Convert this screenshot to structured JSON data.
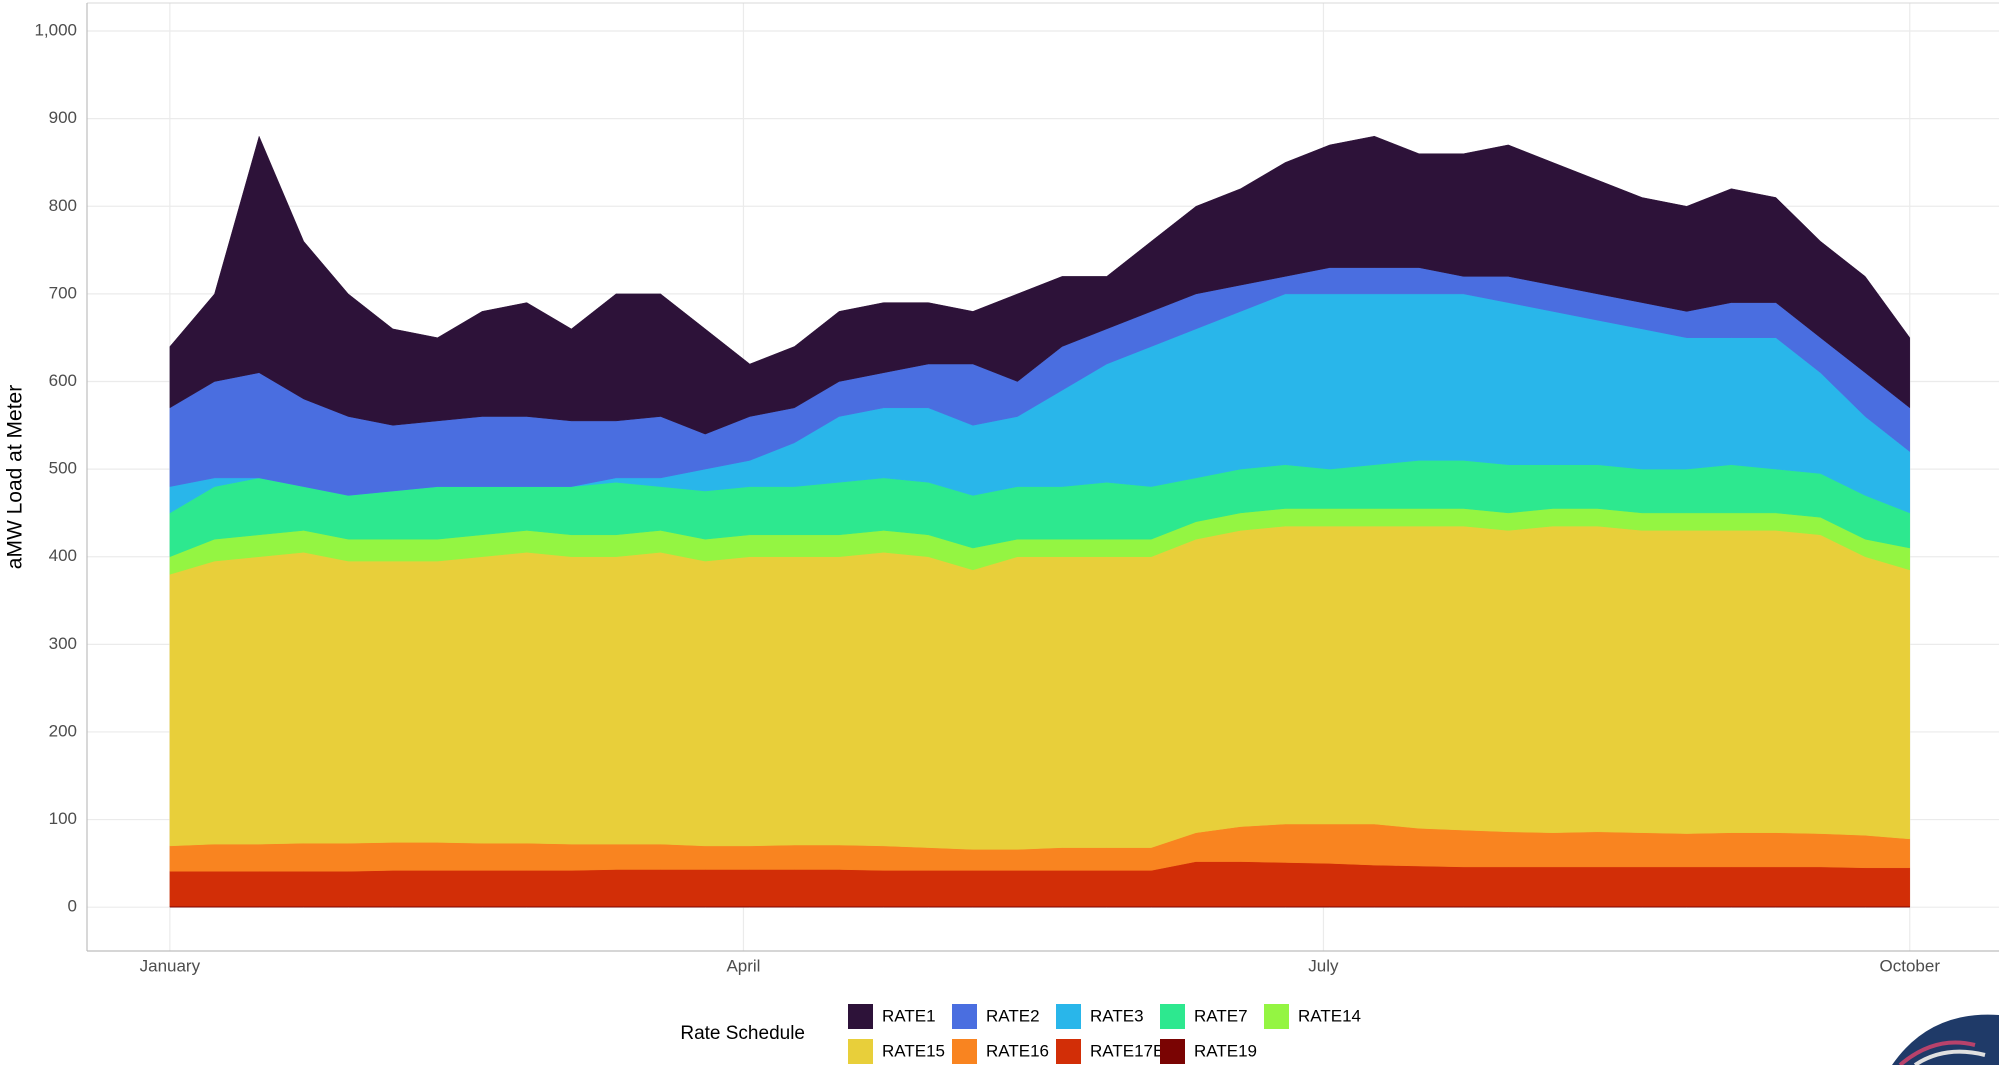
{
  "chart_data": {
    "type": "stacked-area",
    "y_label": "aMW Load at Meter",
    "legend_title": "Rate Schedule",
    "legend_position": "bottom",
    "grid": true,
    "x": [
      0,
      7,
      14,
      21,
      28,
      35,
      42,
      49,
      56,
      63,
      70,
      77,
      84,
      91,
      98,
      105,
      112,
      119,
      126,
      133,
      140,
      147,
      154,
      161,
      168,
      175,
      182,
      189,
      196,
      203,
      210,
      217,
      224,
      231,
      238,
      245,
      252,
      259,
      266,
      273
    ],
    "xlim": [
      -13,
      287
    ],
    "xticks": [
      {
        "value": 0,
        "label": "January"
      },
      {
        "value": 90,
        "label": "April"
      },
      {
        "value": 181,
        "label": "July"
      },
      {
        "value": 273,
        "label": "October"
      }
    ],
    "ylim": [
      -50,
      1032
    ],
    "yticks": [
      0,
      100,
      200,
      300,
      400,
      500,
      600,
      700,
      800,
      900,
      {
        "value": 1000,
        "label": "1,000"
      }
    ],
    "series": [
      {
        "name": "RATE1",
        "color": "#2d1239",
        "values": [
          70,
          100,
          270,
          180,
          140,
          110,
          95,
          120,
          130,
          105,
          145,
          140,
          120,
          60,
          70,
          80,
          80,
          70,
          60,
          100,
          80,
          60,
          80,
          100,
          110,
          130,
          140,
          150,
          130,
          140,
          150,
          140,
          130,
          120,
          120,
          130,
          120,
          110,
          110,
          80
        ]
      },
      {
        "name": "RATE2",
        "color": "#4a6ee0",
        "values": [
          90,
          110,
          120,
          100,
          90,
          75,
          75,
          80,
          80,
          75,
          65,
          70,
          40,
          50,
          40,
          40,
          40,
          50,
          70,
          40,
          50,
          40,
          40,
          40,
          30,
          20,
          30,
          30,
          30,
          20,
          30,
          30,
          30,
          30,
          30,
          40,
          40,
          40,
          50,
          50
        ]
      },
      {
        "name": "RATE3",
        "color": "#29b6ea",
        "values": [
          30,
          10,
          0,
          0,
          0,
          0,
          0,
          0,
          0,
          0,
          5,
          10,
          25,
          30,
          50,
          75,
          80,
          85,
          80,
          80,
          110,
          135,
          160,
          170,
          180,
          195,
          200,
          195,
          190,
          190,
          185,
          175,
          165,
          160,
          150,
          145,
          150,
          115,
          90,
          70
        ]
      },
      {
        "name": "RATE7",
        "color": "#2de88f",
        "values": [
          50,
          60,
          65,
          50,
          50,
          55,
          60,
          55,
          50,
          55,
          60,
          50,
          55,
          55,
          55,
          60,
          60,
          60,
          60,
          60,
          60,
          65,
          60,
          50,
          50,
          50,
          45,
          50,
          55,
          55,
          55,
          50,
          50,
          50,
          50,
          55,
          50,
          50,
          50,
          40
        ]
      },
      {
        "name": "RATE14",
        "color": "#94f542",
        "values": [
          20,
          25,
          25,
          25,
          25,
          25,
          25,
          25,
          25,
          25,
          25,
          25,
          25,
          25,
          25,
          25,
          25,
          25,
          25,
          20,
          20,
          20,
          20,
          20,
          20,
          20,
          20,
          20,
          20,
          20,
          20,
          20,
          20,
          20,
          20,
          20,
          20,
          20,
          20,
          25
        ]
      },
      {
        "name": "RATE15",
        "color": "#e8cf3a",
        "values": [
          310,
          323,
          328,
          332,
          322,
          321,
          321,
          327,
          332,
          328,
          328,
          333,
          325,
          330,
          329,
          329,
          335,
          332,
          319,
          334,
          332,
          332,
          332,
          335,
          338,
          340,
          340,
          340,
          345,
          347,
          344,
          350,
          349,
          345,
          346,
          345,
          345,
          341,
          318,
          307
        ]
      },
      {
        "name": "RATE16",
        "color": "#f98420",
        "values": [
          29,
          31,
          31,
          32,
          32,
          32,
          32,
          31,
          31,
          30,
          29,
          29,
          27,
          27,
          28,
          28,
          28,
          26,
          24,
          24,
          26,
          26,
          26,
          33,
          40,
          44,
          45,
          47,
          43,
          42,
          40,
          39,
          40,
          39,
          38,
          39,
          39,
          38,
          37,
          33
        ]
      },
      {
        "name": "RATE17B",
        "color": "#d22e07",
        "values": [
          40,
          40,
          40,
          40,
          40,
          41,
          41,
          41,
          41,
          41,
          42,
          42,
          42,
          42,
          42,
          42,
          41,
          41,
          41,
          41,
          41,
          41,
          41,
          51,
          51,
          50,
          49,
          47,
          46,
          45,
          45,
          45,
          45,
          45,
          45,
          45,
          45,
          45,
          44,
          44
        ]
      },
      {
        "name": "RATE19",
        "color": "#7a0403",
        "values": [
          1,
          1,
          1,
          1,
          1,
          1,
          1,
          1,
          1,
          1,
          1,
          1,
          1,
          1,
          1,
          1,
          1,
          1,
          1,
          1,
          1,
          1,
          1,
          1,
          1,
          1,
          1,
          1,
          1,
          1,
          1,
          1,
          1,
          1,
          1,
          1,
          1,
          1,
          1,
          1
        ]
      }
    ]
  }
}
